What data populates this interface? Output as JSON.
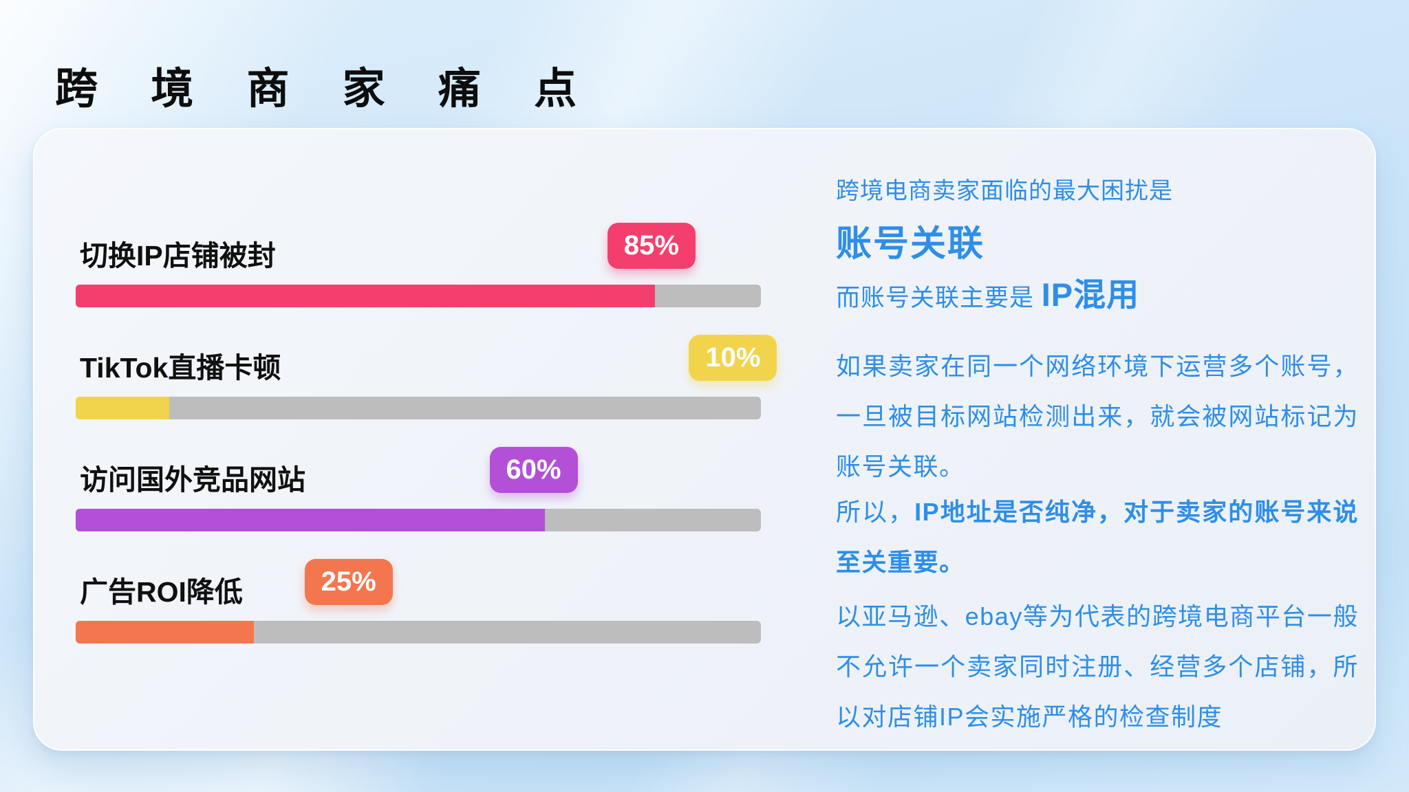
{
  "page": {
    "title": "跨 境 商 家 痛 点"
  },
  "colors": {
    "title": "#0d0d0d",
    "text_blue": "#2e8ee8",
    "track": "#bdbdbd",
    "card_bg": "#eff3f9",
    "page_bg": "#cbe4f8"
  },
  "chart_data": {
    "type": "bar",
    "orientation": "horizontal",
    "unit": "%",
    "track_color": "#bdbdbd",
    "bars": [
      {
        "label": "切换IP店铺被封",
        "value": 85,
        "value_label": "85%",
        "color": "#f43f6e",
        "fill_pct": 84.5,
        "badge_left_pct": 77.6
      },
      {
        "label": "TikTok直播卡顿",
        "value": 10,
        "value_label": "10%",
        "color": "#f2d44c",
        "fill_pct": 13.7,
        "badge_left_pct": 89.5
      },
      {
        "label": "访问国外竞品网站",
        "value": 60,
        "value_label": "60%",
        "color": "#b44fd8",
        "fill_pct": 68.5,
        "badge_left_pct": 60.4
      },
      {
        "label": "广告ROI降低",
        "value": 25,
        "value_label": "25%",
        "color": "#f4764f",
        "fill_pct": 26.0,
        "badge_left_pct": 33.4
      }
    ]
  },
  "right_panel": {
    "intro": "跨境电商卖家面临的最大困扰是",
    "headline": "账号关联",
    "line3_prefix": "而账号关联主要是 ",
    "line3_highlight": "IP混用",
    "para1": "如果卖家在同一个网络环境下运营多个账号，一旦被目标网站检测出来，就会被网站标记为账号关联。",
    "para2_prefix": "所以，",
    "para2_bold": "IP地址是否纯净，对于卖家的账号来说至关重要。",
    "para3": "以亚马逊、ebay等为代表的跨境电商平台一般不允许一个卖家同时注册、经营多个店铺，所以对店铺IP会实施严格的检查制度"
  }
}
